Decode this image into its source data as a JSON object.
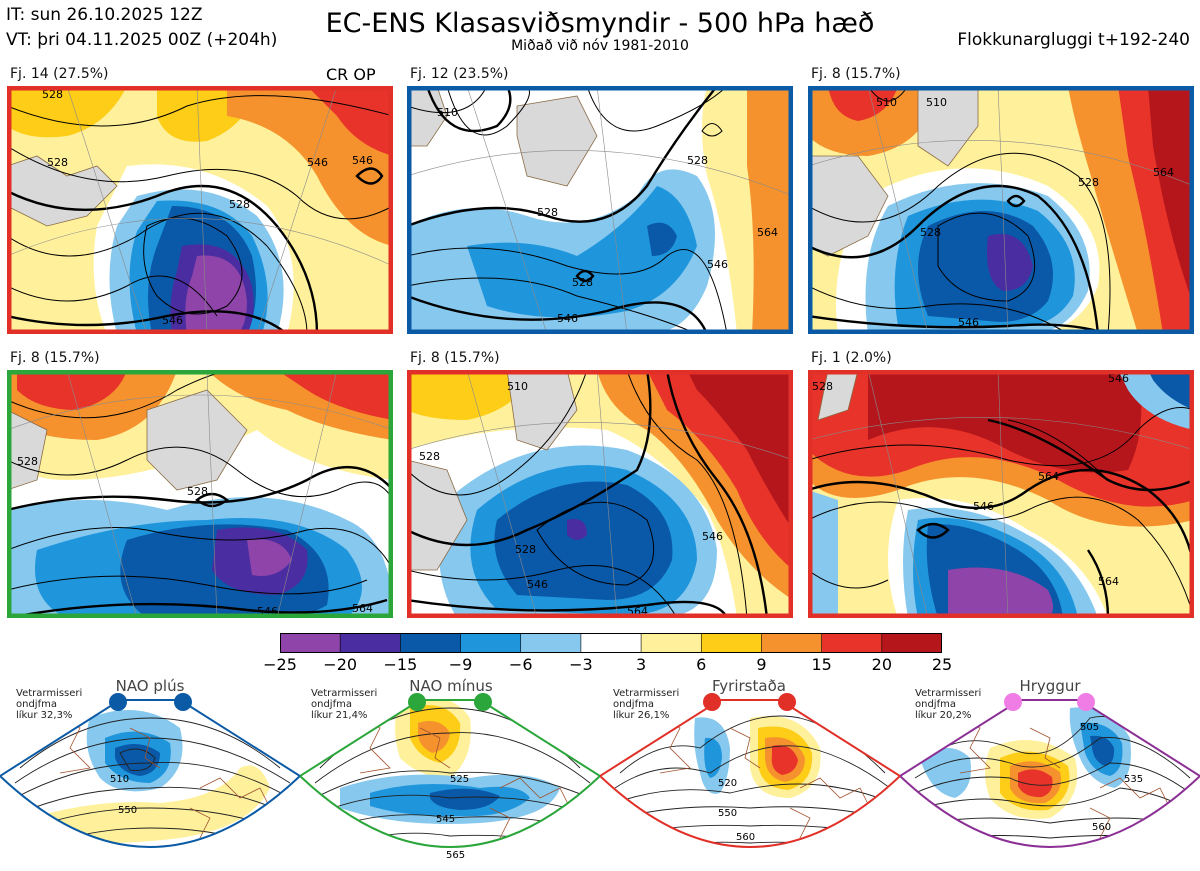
{
  "header": {
    "title": "EC-ENS Klasasviðsmyndir - 500 hPa hæð",
    "subtitle": "Miðað við nóv 1981-2010",
    "init_time": "IT: sun 26.10.2025 12Z",
    "valid_time": "VT: þri 04.11.2025 00Z  (+204h)",
    "window": "Flokkunargluggi t+192-240",
    "cr_op": "CR OP"
  },
  "panels": [
    {
      "label": "Fj. 14 (27.5%)",
      "border_color": "#e03027",
      "contour_labels": [
        "528",
        "528",
        "546",
        "546",
        "546",
        "528"
      ]
    },
    {
      "label": "Fj. 12 (23.5%)",
      "border_color": "#0a5aa5",
      "contour_labels": [
        "510",
        "528",
        "528",
        "546",
        "546",
        "528",
        "564"
      ]
    },
    {
      "label": "Fj. 8 (15.7%)",
      "border_color": "#0a5aa5",
      "contour_labels": [
        "510",
        "510",
        "528",
        "528",
        "546",
        "564"
      ]
    },
    {
      "label": "Fj. 8 (15.7%)",
      "border_color": "#2aa63a",
      "contour_labels": [
        "528",
        "528",
        "546",
        "564"
      ]
    },
    {
      "label": "Fj. 8 (15.7%)",
      "border_color": "#e03027",
      "contour_labels": [
        "510",
        "528",
        "528",
        "546",
        "546",
        "564"
      ]
    },
    {
      "label": "Fj. 1 (2.0%)",
      "border_color": "#e03027",
      "contour_labels": [
        "528",
        "546",
        "546",
        "564",
        "564"
      ]
    }
  ],
  "colorbar": {
    "ticks": [
      "−25",
      "−20",
      "−15",
      "−9",
      "−6",
      "−3",
      "3",
      "6",
      "9",
      "15",
      "20",
      "25"
    ],
    "colors": [
      "#8e44a8",
      "#4a2da0",
      "#0a58a8",
      "#1f96dc",
      "#86c8ee",
      "#ffffff",
      "#fff19b",
      "#fecd17",
      "#f6922e",
      "#e8332a",
      "#b5161b"
    ]
  },
  "regimes": [
    {
      "name": "NAO plús",
      "info": "Vetrarmisseri\nondjfma\nlíkur 32,3%",
      "color": "#0a5aa5",
      "contour_labels": [
        "510",
        "550"
      ]
    },
    {
      "name": "NAO mínus",
      "info": "Vetrarmisseri\nondjfma\nlíkur 21,4%",
      "color": "#2aa63a",
      "contour_labels": [
        "525",
        "545",
        "565"
      ]
    },
    {
      "name": "Fyrirstaða",
      "info": "Vetrarmisseri\nondjfma\nlíkur 26,1%",
      "color": "#e03027",
      "contour_labels": [
        "520",
        "550",
        "560"
      ]
    },
    {
      "name": "Hryggur",
      "info": "Vetrarmisseri\nondjfma\nlíkur 20,2%",
      "color": "#8b2f95",
      "marker_color": "#f07de6",
      "contour_labels": [
        "505",
        "535",
        "560"
      ]
    }
  ]
}
